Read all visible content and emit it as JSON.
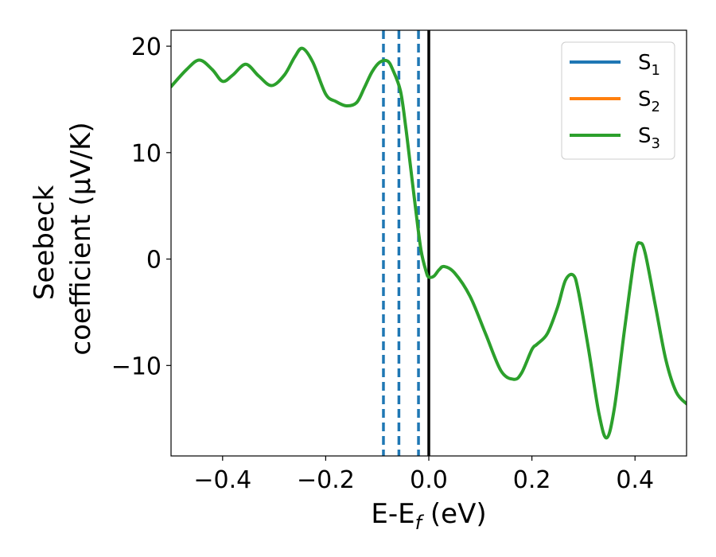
{
  "chart_data": {
    "type": "line",
    "xlabel": "E-E",
    "xlabel_sub": "f",
    "xlabel_unit": " (eV)",
    "ylabel_line1": "Seebeck",
    "ylabel_line2": "coefficient  (μV/K)",
    "xlim": [
      -0.5,
      0.5
    ],
    "ylim": [
      -18.5,
      21.5
    ],
    "xticks": [
      -0.4,
      -0.2,
      0.0,
      0.2,
      0.4
    ],
    "xtick_labels": [
      "−0.4",
      "−0.2",
      "0.0",
      "0.2",
      "0.4"
    ],
    "yticks": [
      -10,
      0,
      10,
      20
    ],
    "ytick_labels": [
      "−10",
      "0",
      "10",
      "20"
    ],
    "grid": false,
    "legend_position": "top-right",
    "series": [
      {
        "name": "S",
        "name_sub": "1",
        "color": "#1f77b4"
      },
      {
        "name": "S",
        "name_sub": "2",
        "color": "#ff7f0e"
      },
      {
        "name": "S",
        "name_sub": "3",
        "color": "#2ca02c"
      }
    ],
    "curve": {
      "color": "#2ca02c",
      "x": [
        -0.5,
        -0.47,
        -0.445,
        -0.42,
        -0.4,
        -0.38,
        -0.355,
        -0.33,
        -0.305,
        -0.28,
        -0.26,
        -0.245,
        -0.225,
        -0.2,
        -0.18,
        -0.16,
        -0.14,
        -0.125,
        -0.11,
        -0.095,
        -0.08,
        -0.07,
        -0.055,
        -0.045,
        -0.035,
        -0.025,
        -0.015,
        -0.005,
        0.0,
        0.01,
        0.02,
        0.03,
        0.05,
        0.08,
        0.11,
        0.14,
        0.165,
        0.18,
        0.2,
        0.21,
        0.23,
        0.25,
        0.265,
        0.28,
        0.29,
        0.31,
        0.33,
        0.345,
        0.36,
        0.38,
        0.4,
        0.41,
        0.42,
        0.44,
        0.46,
        0.48,
        0.5
      ],
      "y": [
        16.2,
        17.8,
        18.7,
        17.8,
        16.7,
        17.3,
        18.3,
        17.2,
        16.3,
        17.3,
        19.0,
        19.8,
        18.5,
        15.5,
        14.8,
        14.4,
        14.7,
        16.1,
        17.6,
        18.5,
        18.6,
        17.8,
        15.8,
        12.5,
        8.5,
        4.5,
        0.8,
        -1.2,
        -1.7,
        -1.6,
        -1.0,
        -0.7,
        -1.3,
        -3.5,
        -7.0,
        -10.5,
        -11.3,
        -10.7,
        -8.5,
        -8.0,
        -7.0,
        -4.5,
        -2.0,
        -1.5,
        -3.0,
        -8.5,
        -14.5,
        -16.8,
        -14.0,
        -6.5,
        0.5,
        1.5,
        0.5,
        -4.5,
        -9.5,
        -12.5,
        -13.6
      ]
    },
    "vlines": [
      {
        "x": -0.088,
        "color": "#1f77b4",
        "style": "dashed"
      },
      {
        "x": -0.058,
        "color": "#1f77b4",
        "style": "dashed"
      },
      {
        "x": -0.02,
        "color": "#1f77b4",
        "style": "dashed"
      },
      {
        "x": 0.0,
        "color": "#000000",
        "style": "solid"
      }
    ]
  }
}
